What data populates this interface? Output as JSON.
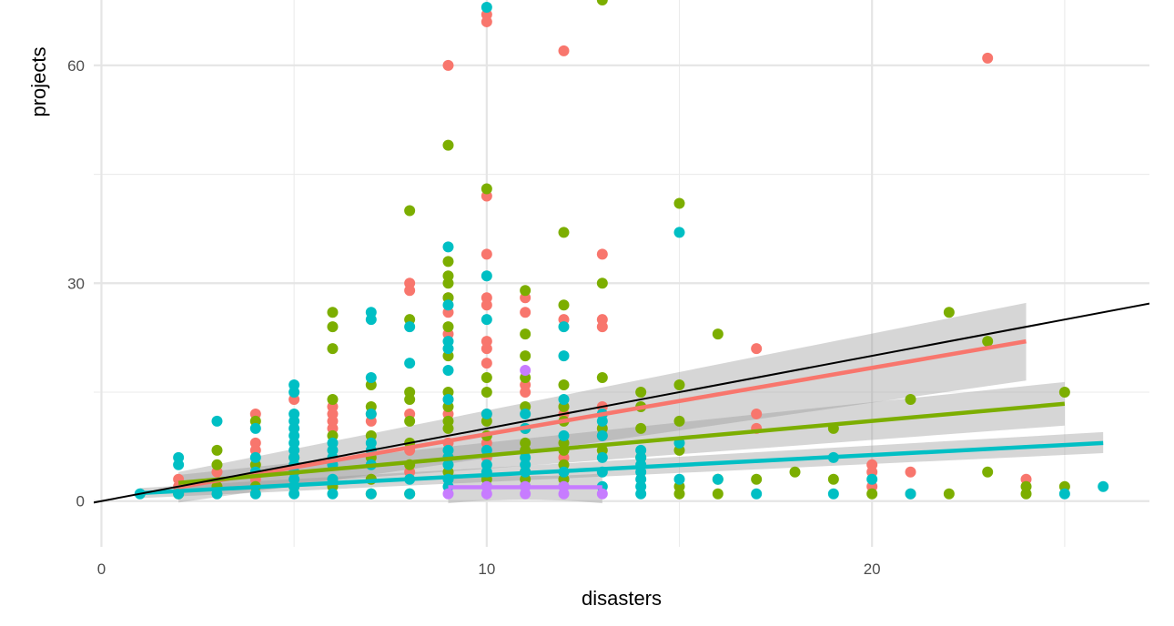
{
  "chart_data": {
    "type": "scatter",
    "title": "",
    "xlabel": "disasters",
    "ylabel": "projects",
    "xlim": [
      -0.2,
      27.2
    ],
    "ylim": [
      -6.3,
      69.0
    ],
    "x_ticks": [
      0,
      10,
      20
    ],
    "x_tick_labels": [
      "0",
      "10",
      "20"
    ],
    "x_minor_ticks": [
      5,
      15,
      25
    ],
    "y_ticks": [
      0,
      30,
      60
    ],
    "y_tick_labels": [
      "0",
      "30",
      "60"
    ],
    "y_minor_ticks": [
      15,
      45
    ],
    "grid": true,
    "legend": "none",
    "reference_line": {
      "name": "y = x",
      "color": "#000000",
      "slope": 1,
      "intercept": 0
    },
    "series": [
      {
        "name": "red",
        "color": "#F8766D",
        "points": [
          [
            2,
            3
          ],
          [
            2,
            2
          ],
          [
            3,
            2
          ],
          [
            3,
            4
          ],
          [
            4,
            12
          ],
          [
            4,
            8
          ],
          [
            4,
            7
          ],
          [
            4,
            3
          ],
          [
            5,
            14
          ],
          [
            5,
            4
          ],
          [
            6,
            13
          ],
          [
            6,
            12
          ],
          [
            6,
            11
          ],
          [
            6,
            10
          ],
          [
            7,
            12
          ],
          [
            7,
            11
          ],
          [
            7,
            3
          ],
          [
            8,
            30
          ],
          [
            8,
            29
          ],
          [
            8,
            12
          ],
          [
            8,
            7
          ],
          [
            8,
            4
          ],
          [
            9,
            60
          ],
          [
            9,
            28
          ],
          [
            9,
            26
          ],
          [
            9,
            23
          ],
          [
            9,
            14
          ],
          [
            9,
            12
          ],
          [
            9,
            8
          ],
          [
            9,
            6
          ],
          [
            10,
            67
          ],
          [
            10,
            66
          ],
          [
            10,
            42
          ],
          [
            10,
            34
          ],
          [
            10,
            28
          ],
          [
            10,
            27
          ],
          [
            10,
            22
          ],
          [
            10,
            21
          ],
          [
            10,
            19
          ],
          [
            10,
            12
          ],
          [
            10,
            8
          ],
          [
            10,
            6
          ],
          [
            11,
            28
          ],
          [
            11,
            26
          ],
          [
            11,
            16
          ],
          [
            11,
            15
          ],
          [
            11,
            4
          ],
          [
            12,
            62
          ],
          [
            12,
            25
          ],
          [
            12,
            13
          ],
          [
            12,
            12
          ],
          [
            12,
            6
          ],
          [
            12,
            3
          ],
          [
            13,
            34
          ],
          [
            13,
            25
          ],
          [
            13,
            24
          ],
          [
            13,
            13
          ],
          [
            13,
            9
          ],
          [
            17,
            21
          ],
          [
            17,
            12
          ],
          [
            17,
            10
          ],
          [
            20,
            5
          ],
          [
            20,
            4
          ],
          [
            20,
            2
          ],
          [
            21,
            4
          ],
          [
            21,
            1
          ],
          [
            23,
            61
          ],
          [
            24,
            3
          ]
        ],
        "trend": {
          "x": [
            2,
            24
          ],
          "y": [
            1.9,
            22.0
          ],
          "ci_low": [
            -0.2,
            16.6
          ],
          "ci_high": [
            4.0,
            27.3
          ]
        }
      },
      {
        "name": "green",
        "color": "#7CAE00",
        "points": [
          [
            2,
            1
          ],
          [
            3,
            7
          ],
          [
            3,
            5
          ],
          [
            3,
            2
          ],
          [
            4,
            11
          ],
          [
            4,
            5
          ],
          [
            4,
            2
          ],
          [
            5,
            6
          ],
          [
            5,
            2
          ],
          [
            6,
            26
          ],
          [
            6,
            24
          ],
          [
            6,
            21
          ],
          [
            6,
            14
          ],
          [
            6,
            9
          ],
          [
            6,
            2
          ],
          [
            7,
            16
          ],
          [
            7,
            13
          ],
          [
            7,
            9
          ],
          [
            7,
            6
          ],
          [
            7,
            3
          ],
          [
            7,
            1
          ],
          [
            8,
            40
          ],
          [
            8,
            25
          ],
          [
            8,
            15
          ],
          [
            8,
            14
          ],
          [
            8,
            11
          ],
          [
            8,
            8
          ],
          [
            8,
            5
          ],
          [
            8,
            1
          ],
          [
            9,
            49
          ],
          [
            9,
            33
          ],
          [
            9,
            31
          ],
          [
            9,
            30
          ],
          [
            9,
            28
          ],
          [
            9,
            24
          ],
          [
            9,
            20
          ],
          [
            9,
            15
          ],
          [
            9,
            13
          ],
          [
            9,
            11
          ],
          [
            9,
            10
          ],
          [
            9,
            6
          ],
          [
            9,
            4
          ],
          [
            10,
            43
          ],
          [
            10,
            17
          ],
          [
            10,
            15
          ],
          [
            10,
            11
          ],
          [
            10,
            9
          ],
          [
            10,
            3
          ],
          [
            11,
            29
          ],
          [
            11,
            23
          ],
          [
            11,
            20
          ],
          [
            11,
            17
          ],
          [
            11,
            13
          ],
          [
            11,
            10
          ],
          [
            11,
            8
          ],
          [
            11,
            7
          ],
          [
            11,
            4
          ],
          [
            11,
            3
          ],
          [
            12,
            37
          ],
          [
            12,
            27
          ],
          [
            12,
            16
          ],
          [
            12,
            13
          ],
          [
            12,
            11
          ],
          [
            12,
            8
          ],
          [
            12,
            7
          ],
          [
            12,
            5
          ],
          [
            12,
            3
          ],
          [
            13,
            69
          ],
          [
            13,
            30
          ],
          [
            13,
            17
          ],
          [
            13,
            10
          ],
          [
            13,
            7
          ],
          [
            14,
            15
          ],
          [
            14,
            13
          ],
          [
            14,
            10
          ],
          [
            14,
            6
          ],
          [
            15,
            41
          ],
          [
            15,
            16
          ],
          [
            15,
            11
          ],
          [
            15,
            7
          ],
          [
            15,
            2
          ],
          [
            15,
            1
          ],
          [
            16,
            23
          ],
          [
            16,
            3
          ],
          [
            16,
            1
          ],
          [
            17,
            3
          ],
          [
            18,
            4
          ],
          [
            19,
            10
          ],
          [
            19,
            3
          ],
          [
            20,
            1
          ],
          [
            21,
            14
          ],
          [
            22,
            26
          ],
          [
            22,
            1
          ],
          [
            23,
            22
          ],
          [
            23,
            4
          ],
          [
            24,
            2
          ],
          [
            24,
            1
          ],
          [
            25,
            15
          ],
          [
            25,
            2
          ]
        ],
        "trend": {
          "x": [
            2,
            25
          ],
          "y": [
            2.5,
            13.4
          ],
          "ci_low": [
            1.3,
            10.4
          ],
          "ci_high": [
            3.6,
            16.4
          ]
        }
      },
      {
        "name": "cyan",
        "color": "#00BFC4",
        "points": [
          [
            1,
            1
          ],
          [
            2,
            6
          ],
          [
            2,
            5
          ],
          [
            2,
            1
          ],
          [
            3,
            11
          ],
          [
            3,
            1
          ],
          [
            4,
            10
          ],
          [
            4,
            6
          ],
          [
            4,
            4
          ],
          [
            4,
            1
          ],
          [
            5,
            16
          ],
          [
            5,
            15
          ],
          [
            5,
            12
          ],
          [
            5,
            11
          ],
          [
            5,
            10
          ],
          [
            5,
            9
          ],
          [
            5,
            8
          ],
          [
            5,
            7
          ],
          [
            5,
            6
          ],
          [
            5,
            5
          ],
          [
            5,
            4
          ],
          [
            5,
            3
          ],
          [
            5,
            2
          ],
          [
            5,
            1
          ],
          [
            6,
            8
          ],
          [
            6,
            7
          ],
          [
            6,
            6
          ],
          [
            6,
            5
          ],
          [
            6,
            3
          ],
          [
            6,
            1
          ],
          [
            7,
            26
          ],
          [
            7,
            25
          ],
          [
            7,
            17
          ],
          [
            7,
            12
          ],
          [
            7,
            8
          ],
          [
            7,
            7
          ],
          [
            7,
            5
          ],
          [
            7,
            1
          ],
          [
            8,
            24
          ],
          [
            8,
            19
          ],
          [
            8,
            3
          ],
          [
            8,
            1
          ],
          [
            9,
            35
          ],
          [
            9,
            27
          ],
          [
            9,
            22
          ],
          [
            9,
            21
          ],
          [
            9,
            18
          ],
          [
            9,
            14
          ],
          [
            9,
            7
          ],
          [
            9,
            6
          ],
          [
            9,
            5
          ],
          [
            9,
            3
          ],
          [
            9,
            2
          ],
          [
            10,
            68
          ],
          [
            10,
            31
          ],
          [
            10,
            25
          ],
          [
            10,
            12
          ],
          [
            10,
            7
          ],
          [
            10,
            5
          ],
          [
            10,
            4
          ],
          [
            10,
            2
          ],
          [
            11,
            12
          ],
          [
            11,
            10
          ],
          [
            11,
            6
          ],
          [
            11,
            5
          ],
          [
            11,
            4
          ],
          [
            11,
            2
          ],
          [
            12,
            24
          ],
          [
            12,
            20
          ],
          [
            12,
            14
          ],
          [
            12,
            9
          ],
          [
            12,
            4
          ],
          [
            12,
            2
          ],
          [
            13,
            12
          ],
          [
            13,
            11
          ],
          [
            13,
            9
          ],
          [
            13,
            6
          ],
          [
            13,
            4
          ],
          [
            13,
            2
          ],
          [
            14,
            7
          ],
          [
            14,
            6
          ],
          [
            14,
            5
          ],
          [
            14,
            4
          ],
          [
            14,
            3
          ],
          [
            14,
            2
          ],
          [
            14,
            1
          ],
          [
            15,
            37
          ],
          [
            15,
            8
          ],
          [
            15,
            3
          ],
          [
            16,
            3
          ],
          [
            17,
            1
          ],
          [
            19,
            6
          ],
          [
            19,
            1
          ],
          [
            20,
            3
          ],
          [
            21,
            1
          ],
          [
            25,
            1
          ],
          [
            26,
            2
          ]
        ],
        "trend": {
          "x": [
            1,
            26
          ],
          "y": [
            1.1,
            8.0
          ],
          "ci_low": [
            0.4,
            6.6
          ],
          "ci_high": [
            1.8,
            9.5
          ]
        }
      },
      {
        "name": "purple",
        "color": "#C77CFF",
        "points": [
          [
            9,
            1
          ],
          [
            10,
            1
          ],
          [
            10,
            2
          ],
          [
            11,
            18
          ],
          [
            11,
            2
          ],
          [
            11,
            1
          ],
          [
            12,
            2
          ],
          [
            12,
            1
          ],
          [
            13,
            1
          ]
        ],
        "trend": {
          "x": [
            9,
            13
          ],
          "y": [
            1.9,
            1.9
          ],
          "ci_low": [
            -0.3,
            -0.3
          ],
          "ci_high": [
            3.8,
            3.8
          ]
        }
      }
    ]
  }
}
